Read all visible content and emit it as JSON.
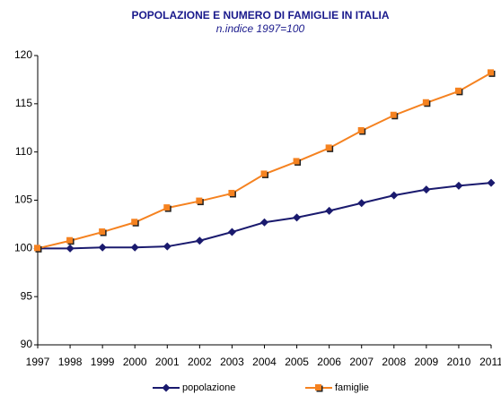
{
  "chart_data": {
    "type": "line",
    "title": "POPOLAZIONE E NUMERO DI FAMIGLIE IN ITALIA",
    "subtitle": "n.indice 1997=100",
    "categories": [
      "1997",
      "1998",
      "1999",
      "2000",
      "2001",
      "2002",
      "2003",
      "2004",
      "2005",
      "2006",
      "2007",
      "2008",
      "2009",
      "2010",
      "2011"
    ],
    "series": [
      {
        "name": "popolazione",
        "color": "#1a1a6e",
        "marker": "diamond",
        "values": [
          100,
          100.0,
          100.1,
          100.1,
          100.2,
          100.8,
          101.7,
          102.7,
          103.2,
          103.9,
          104.7,
          105.5,
          106.1,
          106.5,
          106.8
        ]
      },
      {
        "name": "famiglie",
        "color": "#f58220",
        "marker": "square",
        "values": [
          100,
          100.8,
          101.7,
          102.7,
          104.2,
          104.9,
          105.7,
          107.7,
          109.0,
          110.4,
          112.2,
          113.8,
          115.1,
          116.3,
          118.2
        ]
      }
    ],
    "ylim": [
      90,
      120
    ],
    "yticks": [
      90,
      95,
      100,
      105,
      110,
      115,
      120
    ],
    "grid": false,
    "legend": "bottom"
  }
}
